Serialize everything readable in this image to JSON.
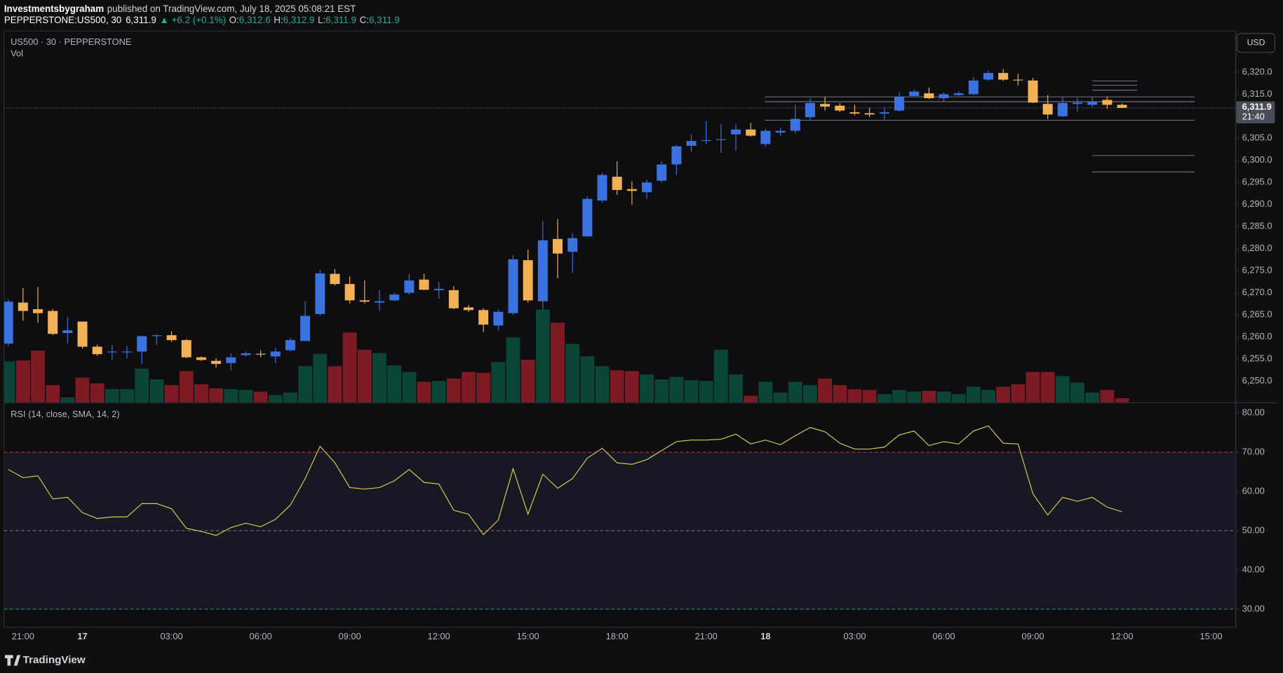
{
  "header": {
    "author": "Investmentsbygraham",
    "published": "published on TradingView.com, July 18, 2025 05:08:21 EST"
  },
  "chart_data": {
    "type": "candlestick",
    "symbol": "PEPPERSTONE:US500, 30",
    "last": "6,311.9",
    "change": "▲ +6.2 (+0.1%)",
    "ohlc_legend": [
      {
        "key": "O:",
        "label": "6,312.6"
      },
      {
        "key": "H:",
        "label": "6,312.9"
      },
      {
        "key": "L:",
        "label": "6,311.9"
      },
      {
        "key": "C:",
        "label": "6,311.9"
      }
    ],
    "title": "US500 · 30 · PEPPERSTONE",
    "currency": "USD",
    "price_tag": {
      "label": "6,311.9",
      "countdown": "21:40"
    },
    "categories": [
      null,
      "21:00",
      null,
      null,
      null,
      "17",
      null,
      null,
      null,
      null,
      null,
      "03:00",
      null,
      null,
      null,
      null,
      null,
      "06:00",
      null,
      null,
      null,
      null,
      null,
      "09:00",
      null,
      null,
      null,
      null,
      null,
      "12:00",
      null,
      null,
      null,
      null,
      null,
      "15:00",
      null,
      null,
      null,
      null,
      null,
      "18:00",
      null,
      null,
      null,
      null,
      null,
      "21:00",
      null,
      null,
      null,
      "18",
      null,
      null,
      null,
      null,
      null,
      "03:00",
      null,
      null,
      null,
      null,
      null,
      "06:00",
      null,
      null,
      null,
      null,
      null,
      "09:00",
      null,
      null,
      null,
      null,
      null,
      "12:00"
    ],
    "future_categories": [
      null,
      null,
      null,
      null,
      null,
      "15:00"
    ],
    "ohlc": [
      [
        6258.5,
        6268.5,
        6258.0,
        6268.0
      ],
      [
        6267.8,
        6271.1,
        6263.7,
        6265.9
      ],
      [
        6266.3,
        6271.3,
        6263.2,
        6265.4
      ],
      [
        6265.9,
        6266.3,
        6260.4,
        6260.7
      ],
      [
        6260.9,
        6264.6,
        6258.5,
        6261.5
      ],
      [
        6263.5,
        6263.5,
        6257.4,
        6257.8
      ],
      [
        6257.8,
        6258.3,
        6255.7,
        6256.1
      ],
      [
        6256.6,
        6258.2,
        6254.8,
        6256.7
      ],
      [
        6256.6,
        6258.0,
        6255.2,
        6256.7
      ],
      [
        6256.7,
        6260.2,
        6253.9,
        6260.2
      ],
      [
        6260.2,
        6260.6,
        6258.2,
        6260.4
      ],
      [
        6260.4,
        6261.3,
        6258.9,
        6259.3
      ],
      [
        6259.3,
        6259.6,
        6255.2,
        6255.4
      ],
      [
        6255.4,
        6255.6,
        6254.6,
        6254.8
      ],
      [
        6254.6,
        6255.2,
        6253.1,
        6253.9
      ],
      [
        6254.1,
        6256.3,
        6252.4,
        6255.4
      ],
      [
        6255.9,
        6256.7,
        6255.6,
        6256.3
      ],
      [
        6256.2,
        6257.0,
        6255.4,
        6256.1
      ],
      [
        6255.6,
        6257.6,
        6254.1,
        6256.7
      ],
      [
        6257.0,
        6259.8,
        6256.7,
        6259.3
      ],
      [
        6259.1,
        6268.1,
        6259.1,
        6264.8
      ],
      [
        6265.2,
        6275.2,
        6264.8,
        6274.4
      ],
      [
        6274.3,
        6275.4,
        6271.7,
        6272.0
      ],
      [
        6272.0,
        6273.7,
        6267.6,
        6268.3
      ],
      [
        6268.3,
        6272.8,
        6267.6,
        6268.0
      ],
      [
        6267.8,
        6270.6,
        6265.9,
        6268.1
      ],
      [
        6268.3,
        6270.0,
        6268.1,
        6269.6
      ],
      [
        6270.0,
        6274.3,
        6269.6,
        6272.8
      ],
      [
        6273.0,
        6274.3,
        6270.6,
        6270.7
      ],
      [
        6270.6,
        6272.4,
        6268.7,
        6270.9
      ],
      [
        6270.6,
        6271.5,
        6266.3,
        6266.5
      ],
      [
        6266.7,
        6267.2,
        6265.7,
        6266.1
      ],
      [
        6266.1,
        6266.5,
        6261.1,
        6262.8
      ],
      [
        6262.6,
        6266.3,
        6261.5,
        6265.7
      ],
      [
        6265.4,
        6278.5,
        6265.0,
        6277.6
      ],
      [
        6277.4,
        6279.8,
        6267.8,
        6268.3
      ],
      [
        6268.1,
        6286.3,
        6266.3,
        6281.9
      ],
      [
        6282.2,
        6286.7,
        6273.3,
        6278.9
      ],
      [
        6279.3,
        6283.5,
        6274.6,
        6282.4
      ],
      [
        6282.8,
        6291.9,
        6282.6,
        6291.3
      ],
      [
        6290.9,
        6297.2,
        6290.4,
        6296.7
      ],
      [
        6296.3,
        6299.8,
        6292.2,
        6293.3
      ],
      [
        6293.5,
        6295.2,
        6290.0,
        6293.1
      ],
      [
        6292.8,
        6295.6,
        6291.3,
        6295.0
      ],
      [
        6295.4,
        6299.8,
        6295.0,
        6299.1
      ],
      [
        6299.1,
        6303.5,
        6296.7,
        6303.2
      ],
      [
        6303.3,
        6305.9,
        6301.9,
        6304.4
      ],
      [
        6304.5,
        6308.9,
        6303.7,
        6304.6
      ],
      [
        6304.6,
        6308.2,
        6301.7,
        6304.8
      ],
      [
        6305.9,
        6308.2,
        6302.2,
        6307.0
      ],
      [
        6307.0,
        6308.5,
        6305.4,
        6305.6
      ],
      [
        6303.7,
        6307.2,
        6303.1,
        6306.7
      ],
      [
        6306.3,
        6307.4,
        6305.6,
        6306.7
      ],
      [
        6306.7,
        6312.6,
        6306.1,
        6309.4
      ],
      [
        6309.8,
        6314.1,
        6309.1,
        6313.0
      ],
      [
        6312.8,
        6314.4,
        6311.3,
        6312.2
      ],
      [
        6312.4,
        6313.0,
        6310.9,
        6311.3
      ],
      [
        6310.9,
        6312.6,
        6310.2,
        6310.6
      ],
      [
        6310.7,
        6311.9,
        6309.8,
        6310.4
      ],
      [
        6310.6,
        6312.0,
        6309.3,
        6310.9
      ],
      [
        6311.3,
        6315.4,
        6311.1,
        6314.4
      ],
      [
        6314.6,
        6316.1,
        6314.4,
        6315.6
      ],
      [
        6315.2,
        6316.5,
        6313.9,
        6314.1
      ],
      [
        6314.1,
        6315.4,
        6313.3,
        6315.0
      ],
      [
        6314.8,
        6315.6,
        6314.6,
        6315.2
      ],
      [
        6315.0,
        6318.9,
        6314.8,
        6318.1
      ],
      [
        6318.3,
        6320.4,
        6318.1,
        6319.8
      ],
      [
        6319.8,
        6320.7,
        6318.0,
        6318.3
      ],
      [
        6318.3,
        6319.6,
        6317.0,
        6318.2
      ],
      [
        6318.1,
        6318.7,
        6313.0,
        6313.1
      ],
      [
        6312.8,
        6314.8,
        6309.4,
        6310.4
      ],
      [
        6310.0,
        6314.3,
        6309.8,
        6313.0
      ],
      [
        6312.8,
        6314.1,
        6311.1,
        6313.1
      ],
      [
        6312.6,
        6314.4,
        6312.0,
        6313.3
      ],
      [
        6313.7,
        6314.4,
        6311.7,
        6312.6
      ],
      [
        6312.6,
        6312.9,
        6311.9,
        6311.9
      ]
    ],
    "up_color": "#3a72e0",
    "down_color": "#f2b155",
    "ylim": [
      6245.2,
      6329.3
    ],
    "yticks": [
      {
        "value": 6250,
        "label": "6,250.0"
      },
      {
        "value": 6255,
        "label": "6,255.0"
      },
      {
        "value": 6260,
        "label": "6,260.0"
      },
      {
        "value": 6265,
        "label": "6,265.0"
      },
      {
        "value": 6270,
        "label": "6,270.0"
      },
      {
        "value": 6275,
        "label": "6,275.0"
      },
      {
        "value": 6280,
        "label": "6,280.0"
      },
      {
        "value": 6285,
        "label": "6,285.0"
      },
      {
        "value": 6290,
        "label": "6,290.0"
      },
      {
        "value": 6295,
        "label": "6,295.0"
      },
      {
        "value": 6300,
        "label": "6,300.0"
      },
      {
        "value": 6305,
        "label": "6,305.0"
      },
      {
        "value": 6315,
        "label": "6,315.0"
      },
      {
        "value": 6320,
        "label": "6,320.0"
      }
    ],
    "grid": false,
    "drawn_levels": [
      6314.4,
      6313.3,
      6309.1
    ],
    "target_levels": [
      6301.1,
      6297.4
    ],
    "short_levels": [
      6318.0,
      6317.0,
      6315.9
    ],
    "volume": {
      "name": "Vol",
      "up_color": "#0b4538",
      "down_color": "#7e1a24",
      "values": [
        50,
        51,
        63,
        21,
        6,
        30,
        23,
        16,
        16,
        41,
        28,
        21,
        38,
        22,
        17,
        16,
        15,
        13,
        9,
        12,
        44,
        59,
        44,
        85,
        64,
        60,
        45,
        37,
        25,
        26,
        29,
        37,
        36,
        49,
        79,
        52,
        113,
        97,
        71,
        56,
        44,
        39,
        38,
        34,
        28,
        31,
        27,
        26,
        64,
        34,
        8,
        25,
        12,
        25,
        21,
        29,
        21,
        16,
        15,
        10,
        15,
        13,
        14,
        13,
        10,
        19,
        15,
        19,
        22,
        37,
        37,
        32,
        24,
        12,
        15,
        5
      ]
    },
    "rsi": {
      "name": "RSI (14, close, SMA, 14, 2)",
      "color": "#dccb4c",
      "fill": "#181724",
      "values": [
        65.6,
        63.5,
        64.0,
        58.1,
        58.5,
        54.6,
        53.1,
        53.5,
        53.5,
        56.9,
        56.9,
        55.6,
        50.6,
        49.8,
        48.8,
        50.8,
        51.9,
        51.0,
        52.9,
        56.5,
        63.3,
        71.5,
        67.3,
        61.0,
        60.6,
        61.0,
        62.7,
        65.6,
        62.3,
        61.9,
        55.2,
        54.2,
        49.0,
        52.7,
        65.8,
        54.2,
        64.4,
        60.8,
        63.3,
        68.5,
        71.0,
        67.3,
        66.9,
        68.1,
        70.4,
        72.7,
        73.1,
        73.1,
        73.3,
        74.6,
        72.1,
        73.1,
        71.9,
        74.2,
        76.3,
        75.2,
        72.3,
        70.8,
        70.8,
        71.3,
        74.4,
        75.4,
        71.7,
        72.7,
        72.1,
        75.4,
        76.7,
        72.3,
        72.1,
        59.4,
        54.0,
        58.5,
        57.5,
        58.5,
        56.0,
        54.8
      ],
      "ylim": [
        25.4,
        82.5
      ],
      "yticks": [
        {
          "value": 30,
          "label": "30.00"
        },
        {
          "value": 40,
          "label": "40.00"
        },
        {
          "value": 50,
          "label": "50.00"
        },
        {
          "value": 60,
          "label": "60.00"
        },
        {
          "value": 70,
          "label": "70.00"
        },
        {
          "value": 80,
          "label": "80.00"
        }
      ],
      "bands": [
        {
          "value": 70,
          "color": "#f23645"
        },
        {
          "value": 50,
          "color": "#787b86"
        },
        {
          "value": 30,
          "color": "#22ab94"
        }
      ]
    }
  },
  "footer": {
    "brand": "TradingView"
  }
}
